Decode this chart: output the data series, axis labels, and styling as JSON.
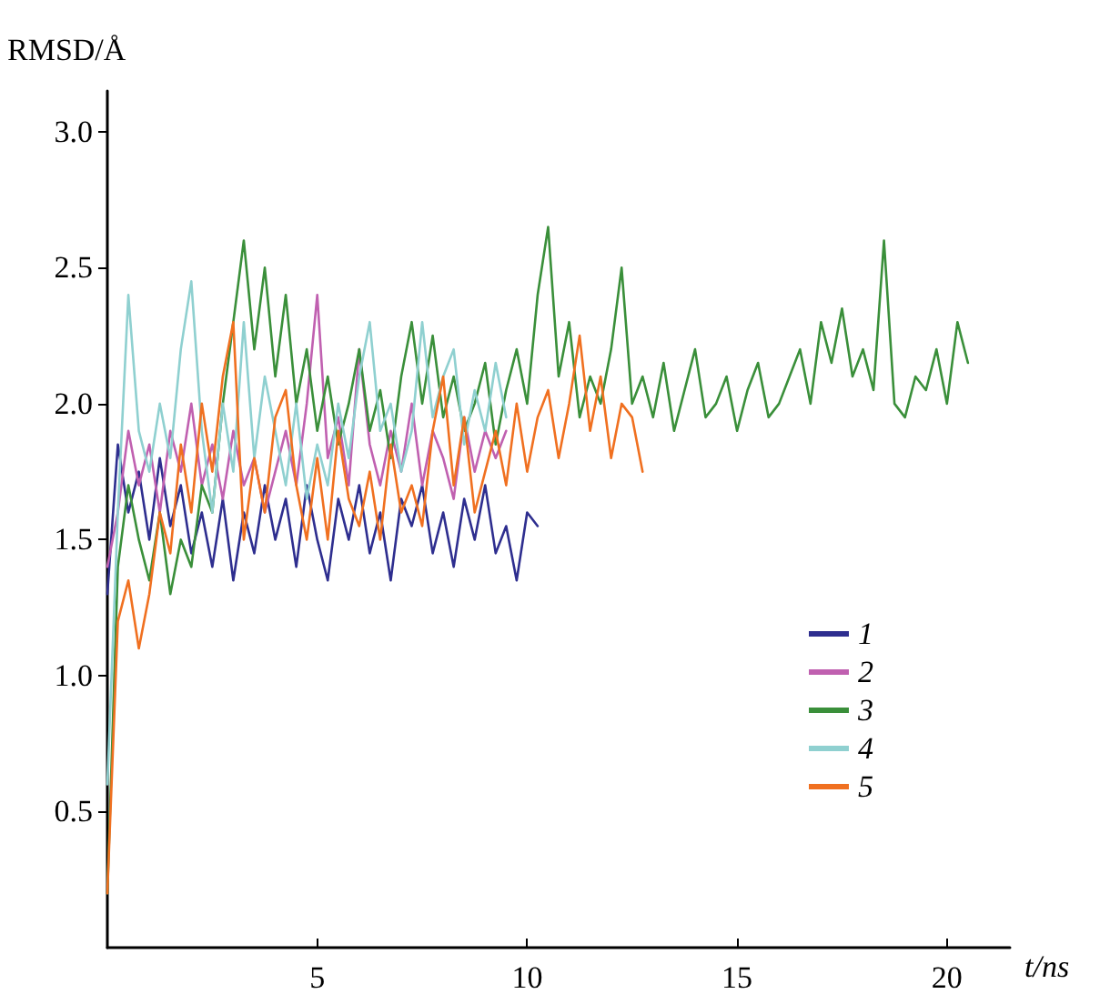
{
  "chart_data": {
    "type": "line",
    "xlabel": "t/ns",
    "ylabel": "RMSD/Å",
    "xlim": [
      0,
      21.5
    ],
    "xticks": [
      5,
      10,
      15,
      20
    ],
    "ylim": [
      0,
      3.15
    ],
    "yticks": [
      0.5,
      {
        "value": 1,
        "label": "1.0"
      },
      1.5,
      {
        "value": 2,
        "label": "2.0"
      },
      2.5,
      {
        "value": 3,
        "label": "3.0"
      }
    ],
    "grid": false,
    "legend": "right",
    "marker": "none",
    "line_style": "solid",
    "series": [
      {
        "name": "1",
        "color": "#2e2e8f",
        "x": [
          0,
          0.25,
          0.5,
          0.75,
          1,
          1.25,
          1.5,
          1.75,
          2,
          2.25,
          2.5,
          2.75,
          3,
          3.25,
          3.5,
          3.75,
          4,
          4.25,
          4.5,
          4.75,
          5,
          5.25,
          5.5,
          5.75,
          6,
          6.25,
          6.5,
          6.75,
          7,
          7.25,
          7.5,
          7.75,
          8,
          8.25,
          8.5,
          8.75,
          9,
          9.25,
          9.5,
          9.75,
          10,
          10.25
        ],
        "values": [
          1.3,
          1.85,
          1.6,
          1.75,
          1.5,
          1.8,
          1.55,
          1.7,
          1.45,
          1.6,
          1.4,
          1.65,
          1.35,
          1.6,
          1.45,
          1.7,
          1.5,
          1.65,
          1.4,
          1.7,
          1.5,
          1.35,
          1.65,
          1.5,
          1.7,
          1.45,
          1.6,
          1.35,
          1.65,
          1.55,
          1.7,
          1.45,
          1.6,
          1.4,
          1.65,
          1.5,
          1.7,
          1.45,
          1.55,
          1.35,
          1.6,
          1.55
        ]
      },
      {
        "name": "2",
        "color": "#c060b0",
        "x": [
          0,
          0.25,
          0.5,
          0.75,
          1,
          1.25,
          1.5,
          1.75,
          2,
          2.25,
          2.5,
          2.75,
          3,
          3.25,
          3.5,
          3.75,
          4,
          4.25,
          4.5,
          4.75,
          5,
          5.25,
          5.5,
          5.75,
          6,
          6.25,
          6.5,
          6.75,
          7,
          7.25,
          7.5,
          7.75,
          8,
          8.25,
          8.5,
          8.75,
          9,
          9.25,
          9.5
        ],
        "values": [
          1.4,
          1.6,
          1.9,
          1.7,
          1.85,
          1.6,
          1.9,
          1.75,
          2.0,
          1.7,
          1.85,
          1.65,
          1.9,
          1.7,
          1.8,
          1.6,
          1.75,
          1.9,
          1.7,
          2.0,
          2.4,
          1.8,
          1.95,
          1.7,
          2.2,
          1.85,
          1.7,
          1.9,
          1.75,
          2.0,
          1.7,
          1.9,
          1.8,
          1.65,
          1.95,
          1.75,
          1.9,
          1.8,
          1.9
        ]
      },
      {
        "name": "3",
        "color": "#3a8f3a",
        "x": [
          0,
          0.25,
          0.5,
          0.75,
          1,
          1.25,
          1.5,
          1.75,
          2,
          2.25,
          2.5,
          2.75,
          3,
          3.25,
          3.5,
          3.75,
          4,
          4.25,
          4.5,
          4.75,
          5,
          5.25,
          5.5,
          5.75,
          6,
          6.25,
          6.5,
          6.75,
          7,
          7.25,
          7.5,
          7.75,
          8,
          8.25,
          8.5,
          8.75,
          9,
          9.25,
          9.5,
          9.75,
          10,
          10.25,
          10.5,
          10.75,
          11,
          11.25,
          11.5,
          11.75,
          12,
          12.25,
          12.5,
          12.75,
          13,
          13.25,
          13.5,
          13.75,
          14,
          14.25,
          14.5,
          14.75,
          15,
          15.25,
          15.5,
          15.75,
          16,
          16.25,
          16.5,
          16.75,
          17,
          17.25,
          17.5,
          17.75,
          18,
          18.25,
          18.5,
          18.75,
          19,
          19.25,
          19.5,
          19.75,
          20,
          20.25,
          20.5
        ],
        "values": [
          0.2,
          1.4,
          1.7,
          1.5,
          1.35,
          1.6,
          1.3,
          1.5,
          1.4,
          1.7,
          1.6,
          2.0,
          2.3,
          2.6,
          2.2,
          2.5,
          2.1,
          2.4,
          2.0,
          2.2,
          1.9,
          2.1,
          1.85,
          2.0,
          2.2,
          1.9,
          2.05,
          1.8,
          2.1,
          2.3,
          2.0,
          2.25,
          1.95,
          2.1,
          1.9,
          2.0,
          2.15,
          1.85,
          2.05,
          2.2,
          2.0,
          2.4,
          2.65,
          2.1,
          2.3,
          1.95,
          2.1,
          2.0,
          2.2,
          2.5,
          2.0,
          2.1,
          1.95,
          2.15,
          1.9,
          2.05,
          2.2,
          1.95,
          2.0,
          2.1,
          1.9,
          2.05,
          2.15,
          1.95,
          2.0,
          2.1,
          2.2,
          2.0,
          2.3,
          2.15,
          2.35,
          2.1,
          2.2,
          2.05,
          2.6,
          2.0,
          1.95,
          2.1,
          2.05,
          2.2,
          2.0,
          2.3,
          2.15
        ]
      },
      {
        "name": "4",
        "color": "#8fd0d0",
        "x": [
          0,
          0.25,
          0.5,
          0.75,
          1,
          1.25,
          1.5,
          1.75,
          2,
          2.25,
          2.5,
          2.75,
          3,
          3.25,
          3.5,
          3.75,
          4,
          4.25,
          4.5,
          4.75,
          5,
          5.25,
          5.5,
          5.75,
          6,
          6.25,
          6.5,
          6.75,
          7,
          7.25,
          7.5,
          7.75,
          8,
          8.25,
          8.5,
          8.75,
          9,
          9.25,
          9.5
        ],
        "values": [
          0.6,
          1.6,
          2.4,
          1.9,
          1.75,
          2.0,
          1.8,
          2.2,
          2.45,
          1.9,
          1.6,
          2.0,
          1.75,
          2.3,
          1.8,
          2.1,
          1.9,
          1.7,
          2.0,
          1.65,
          1.85,
          1.7,
          2.0,
          1.8,
          2.1,
          2.3,
          1.9,
          2.0,
          1.75,
          1.9,
          2.3,
          1.95,
          2.1,
          2.2,
          1.85,
          2.05,
          1.9,
          2.15,
          1.95
        ]
      },
      {
        "name": "5",
        "color": "#f07020",
        "x": [
          0,
          0.25,
          0.5,
          0.75,
          1,
          1.25,
          1.5,
          1.75,
          2,
          2.25,
          2.5,
          2.75,
          3,
          3.25,
          3.5,
          3.75,
          4,
          4.25,
          4.5,
          4.75,
          5,
          5.25,
          5.5,
          5.75,
          6,
          6.25,
          6.5,
          6.75,
          7,
          7.25,
          7.5,
          7.75,
          8,
          8.25,
          8.5,
          8.75,
          9,
          9.25,
          9.5,
          9.75,
          10,
          10.25,
          10.5,
          10.75,
          11,
          11.25,
          11.5,
          11.75,
          12,
          12.25,
          12.5,
          12.75
        ],
        "values": [
          0.2,
          1.2,
          1.35,
          1.1,
          1.3,
          1.6,
          1.45,
          1.85,
          1.6,
          2.0,
          1.75,
          2.1,
          2.3,
          1.5,
          1.8,
          1.6,
          1.95,
          2.05,
          1.7,
          1.5,
          1.8,
          1.5,
          1.9,
          1.65,
          1.55,
          1.75,
          1.5,
          1.85,
          1.6,
          1.7,
          1.55,
          1.9,
          2.1,
          1.7,
          1.95,
          1.6,
          1.75,
          1.9,
          1.7,
          2.0,
          1.75,
          1.95,
          2.05,
          1.8,
          2.0,
          2.25,
          1.9,
          2.1,
          1.8,
          2.0,
          1.95,
          1.75
        ]
      }
    ]
  }
}
